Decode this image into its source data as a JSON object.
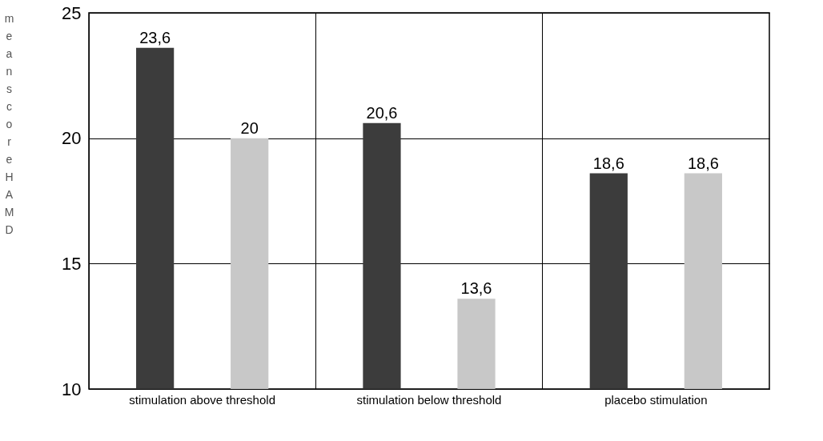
{
  "chart_data": {
    "type": "bar",
    "ylabel": "mean score HAMD",
    "categories": [
      "stimulation above threshold",
      "stimulation below threshold",
      "placebo stimulation"
    ],
    "series": [
      {
        "color": "#3c3c3c",
        "values": [
          23.6,
          20.6,
          18.6
        ],
        "value_labels": [
          "23,6",
          "20,6",
          "18,6"
        ]
      },
      {
        "color": "#c8c8c8",
        "values": [
          20,
          13.6,
          18.6
        ],
        "value_labels": [
          "20",
          "13,6",
          "18,6"
        ]
      }
    ],
    "ylim": [
      10,
      25
    ],
    "yticks": [
      10,
      15,
      20,
      25
    ],
    "grid": true
  }
}
